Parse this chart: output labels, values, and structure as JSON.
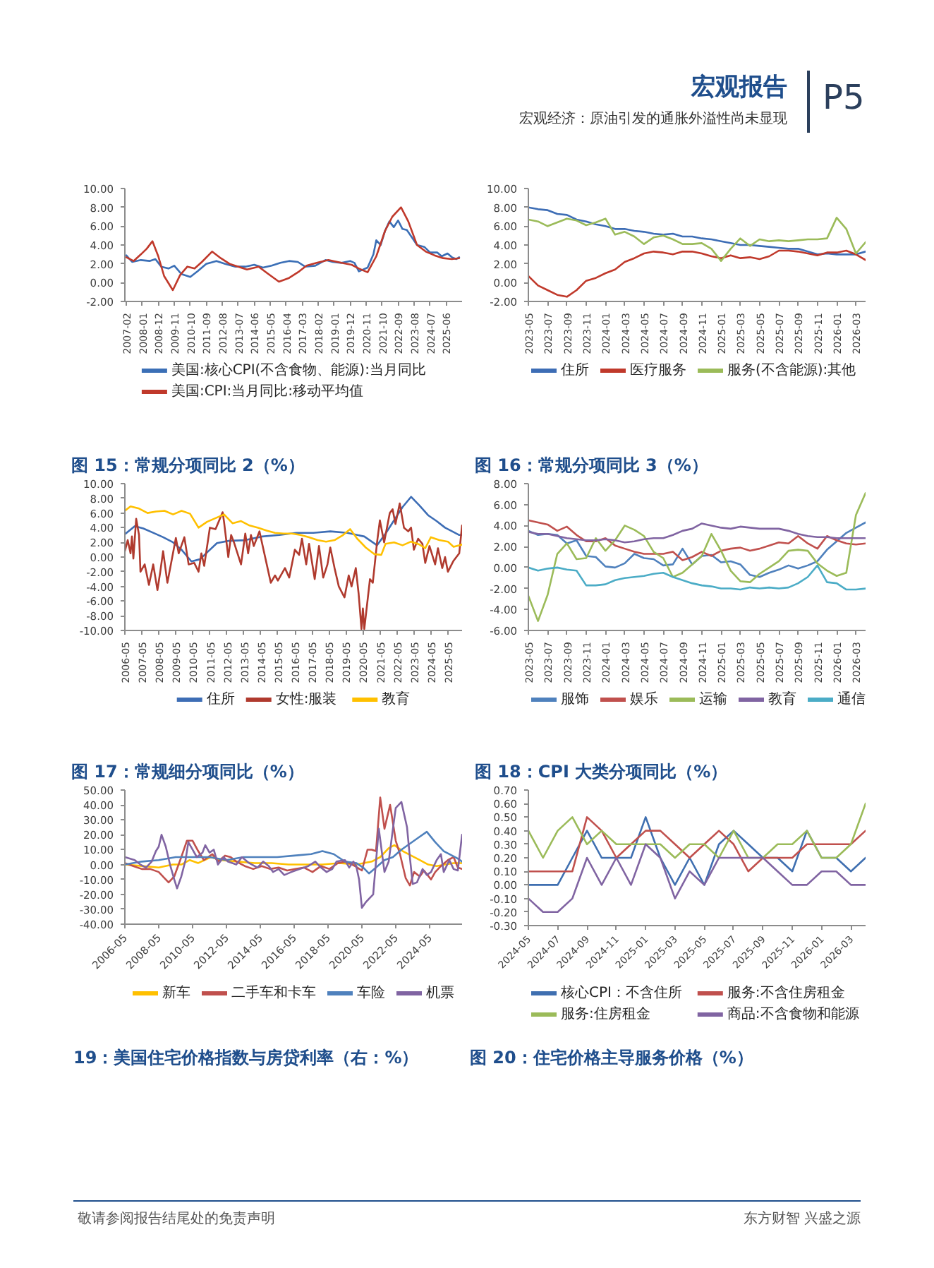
{
  "chart_data": [
    {
      "type": "other",
      "title": "宏观报告",
      "subtitle": "宏观经济：原油引发的通胀外溢性尚未显现",
      "annotations": [
        "P5"
      ]
    },
    {
      "type": "line",
      "xlim": [
        "2007-01",
        "2026-05"
      ],
      "ylim": [
        -2,
        10
      ],
      "xticks": [
        "2007-02",
        "2008-01",
        "2008-12",
        "2009-11",
        "2010-10",
        "2011-09",
        "2012-08",
        "2013-07",
        "2014-06",
        "2015-05",
        "2016-04",
        "2017-03",
        "2018-02",
        "2019-01",
        "2019-12",
        "2020-11",
        "2021-10",
        "2022-09",
        "2023-08",
        "2024-07",
        "2025-06"
      ],
      "yticks": [
        {
          "value": -2,
          "label": "-2.00"
        },
        {
          "value": 0,
          "label": "0.00"
        },
        {
          "value": 2,
          "label": "2.00"
        },
        {
          "value": 4,
          "label": "4.00"
        },
        {
          "value": 6,
          "label": "6.00"
        },
        {
          "value": 8,
          "label": "8.00"
        },
        {
          "value": 10,
          "label": "10.00"
        }
      ],
      "legend": "bottom",
      "series": [
        {
          "name": "美国:核心CPI(不含食物、能源):当月同比",
          "color": "#3b6fb6",
          "x": [
            "2007-02",
            "2007-06",
            "2007-12",
            "2008-06",
            "2008-10",
            "2009-02",
            "2009-07",
            "2009-11",
            "2010-04",
            "2010-10",
            "2011-03",
            "2011-09",
            "2012-04",
            "2012-10",
            "2013-05",
            "2013-12",
            "2014-06",
            "2014-12",
            "2015-06",
            "2015-12",
            "2016-06",
            "2016-12",
            "2017-05",
            "2017-12",
            "2018-07",
            "2018-12",
            "2019-06",
            "2019-12",
            "2020-03",
            "2020-06",
            "2020-12",
            "2021-04",
            "2021-06",
            "2021-09",
            "2021-12",
            "2022-03",
            "2022-06",
            "2022-09",
            "2022-12",
            "2023-03",
            "2023-07",
            "2023-10",
            "2024-03",
            "2024-07",
            "2024-12",
            "2025-03",
            "2025-07",
            "2025-10",
            "2026-01",
            "2026-03"
          ],
          "values": [
            2.9,
            2.2,
            2.4,
            2.3,
            2.5,
            1.7,
            1.5,
            1.8,
            0.9,
            0.6,
            1.2,
            2.0,
            2.3,
            2.0,
            1.7,
            1.7,
            1.9,
            1.6,
            1.8,
            2.1,
            2.3,
            2.2,
            1.7,
            1.8,
            2.4,
            2.2,
            2.1,
            2.3,
            2.1,
            1.2,
            1.6,
            3.0,
            4.5,
            4.0,
            5.5,
            6.5,
            5.9,
            6.6,
            5.7,
            5.6,
            4.7,
            4.0,
            3.8,
            3.2,
            3.2,
            2.8,
            3.1,
            2.7,
            2.5,
            2.7
          ]
        },
        {
          "name": "美国:CPI:当月同比:移动平均值",
          "color": "#c0392b",
          "x": [
            "2007-02",
            "2007-07",
            "2007-12",
            "2008-04",
            "2008-08",
            "2008-12",
            "2009-04",
            "2009-10",
            "2010-03",
            "2010-08",
            "2011-01",
            "2011-06",
            "2012-01",
            "2012-07",
            "2013-01",
            "2013-07",
            "2014-01",
            "2014-09",
            "2015-03",
            "2015-11",
            "2016-06",
            "2017-01",
            "2017-06",
            "2018-01",
            "2018-09",
            "2019-06",
            "2020-01",
            "2020-06",
            "2020-12",
            "2021-06",
            "2021-12",
            "2022-05",
            "2022-11",
            "2023-04",
            "2023-10",
            "2024-04",
            "2024-10",
            "2025-04",
            "2025-10",
            "2026-03"
          ],
          "values": [
            2.7,
            2.3,
            3.0,
            3.6,
            4.4,
            2.8,
            0.7,
            -0.8,
            0.8,
            1.7,
            1.5,
            2.2,
            3.3,
            2.6,
            2.0,
            1.7,
            1.4,
            1.7,
            1.0,
            0.1,
            0.5,
            1.2,
            1.8,
            2.1,
            2.4,
            2.1,
            1.9,
            1.5,
            1.1,
            2.8,
            5.5,
            7.0,
            8.0,
            6.5,
            4.0,
            3.3,
            2.9,
            2.6,
            2.5,
            2.6
          ]
        }
      ]
    },
    {
      "type": "line",
      "xlim": [
        "2023-05",
        "2026-04"
      ],
      "ylim": [
        -2,
        10
      ],
      "x": [
        "2023-05",
        "2023-06",
        "2023-07",
        "2023-08",
        "2023-09",
        "2023-10",
        "2023-11",
        "2023-12",
        "2024-01",
        "2024-02",
        "2024-03",
        "2024-04",
        "2024-05",
        "2024-06",
        "2024-07",
        "2024-08",
        "2024-09",
        "2024-10",
        "2024-11",
        "2024-12",
        "2025-01",
        "2025-02",
        "2025-03",
        "2025-04",
        "2025-05",
        "2025-06",
        "2025-07",
        "2025-08",
        "2025-09",
        "2025-10",
        "2025-11",
        "2025-12",
        "2026-01",
        "2026-02",
        "2026-03",
        "2026-04"
      ],
      "xticks": [
        "2023-05",
        "2023-07",
        "2023-09",
        "2023-11",
        "2024-01",
        "2024-03",
        "2024-05",
        "2024-07",
        "2024-09",
        "2024-11",
        "2025-01",
        "2025-03",
        "2025-05",
        "2025-07",
        "2025-09",
        "2025-11",
        "2026-01",
        "2026-03"
      ],
      "yticks": [
        {
          "value": -2,
          "label": "-2.00"
        },
        {
          "value": 0,
          "label": "0.00"
        },
        {
          "value": 2,
          "label": "2.00"
        },
        {
          "value": 4,
          "label": "4.00"
        },
        {
          "value": 6,
          "label": "6.00"
        },
        {
          "value": 8,
          "label": "8.00"
        },
        {
          "value": 10,
          "label": "10.00"
        }
      ],
      "legend": "bottom",
      "series": [
        {
          "name": "住所",
          "color": "#3d6db5",
          "values": [
            8.0,
            7.8,
            7.7,
            7.3,
            7.2,
            6.7,
            6.5,
            6.2,
            6.0,
            5.7,
            5.7,
            5.5,
            5.4,
            5.2,
            5.1,
            5.2,
            4.9,
            4.9,
            4.7,
            4.6,
            4.4,
            4.2,
            4.0,
            4.0,
            3.9,
            3.8,
            3.7,
            3.6,
            3.6,
            3.3,
            3.0,
            3.1,
            3.0,
            3.0,
            3.0,
            3.3
          ]
        },
        {
          "name": "医疗服务",
          "color": "#c0392b",
          "values": [
            0.7,
            -0.3,
            -0.8,
            -1.3,
            -1.5,
            -0.8,
            0.2,
            0.5,
            1.0,
            1.4,
            2.2,
            2.6,
            3.1,
            3.3,
            3.2,
            3.0,
            3.3,
            3.3,
            3.1,
            2.8,
            2.6,
            2.9,
            2.6,
            2.7,
            2.5,
            2.8,
            3.4,
            3.4,
            3.3,
            3.1,
            2.9,
            3.2,
            3.2,
            3.4,
            3.0,
            2.4
          ]
        },
        {
          "name": "服务(不含能源):其他",
          "color": "#9bbb59",
          "values": [
            6.7,
            6.5,
            6.0,
            6.4,
            6.8,
            6.6,
            6.1,
            6.4,
            6.8,
            5.1,
            5.4,
            4.9,
            4.1,
            4.8,
            5.0,
            4.6,
            4.1,
            4.1,
            4.2,
            3.6,
            2.3,
            3.6,
            4.7,
            3.9,
            4.6,
            4.4,
            4.5,
            4.4,
            4.5,
            4.6,
            4.6,
            4.7,
            6.9,
            5.7,
            3.1,
            4.3
          ]
        }
      ]
    },
    {
      "type": "line",
      "title": "图 15：常规分项同比 2（%）",
      "xlim": [
        "2006-05",
        "2026-03"
      ],
      "ylim": [
        -10,
        10
      ],
      "xticks": [
        "2006-05",
        "2007-05",
        "2008-05",
        "2009-05",
        "2010-05",
        "2011-05",
        "2012-05",
        "2013-05",
        "2014-05",
        "2015-05",
        "2016-05",
        "2017-05",
        "2018-05",
        "2019-05",
        "2020-05",
        "2021-05",
        "2022-05",
        "2023-05",
        "2024-05",
        "2025-05"
      ],
      "yticks": [
        {
          "value": -10,
          "label": "-10.00"
        },
        {
          "value": -8,
          "label": "-8.00"
        },
        {
          "value": -6,
          "label": "-6.00"
        },
        {
          "value": -4,
          "label": "-4.00"
        },
        {
          "value": -2,
          "label": "-2.00"
        },
        {
          "value": 0,
          "label": "0.00"
        },
        {
          "value": 2,
          "label": "2.00"
        },
        {
          "value": 4,
          "label": "4.00"
        },
        {
          "value": 6,
          "label": "6.00"
        },
        {
          "value": 8,
          "label": "8.00"
        },
        {
          "value": 10,
          "label": "10.00"
        }
      ],
      "legend": "bottom",
      "series": [
        {
          "name": "住所",
          "color": "#3d6db5",
          "x": [
            "2006-05",
            "2006-12",
            "2007-06",
            "2008-01",
            "2008-08",
            "2009-03",
            "2009-09",
            "2010-04",
            "2010-10",
            "2011-04",
            "2011-10",
            "2012-06",
            "2013-06",
            "2014-06",
            "2015-06",
            "2016-06",
            "2017-06",
            "2018-06",
            "2019-06",
            "2020-06",
            "2021-03",
            "2021-09",
            "2022-03",
            "2022-09",
            "2023-03",
            "2023-09",
            "2024-03",
            "2024-09",
            "2025-03",
            "2025-09",
            "2026-01",
            "2026-03"
          ],
          "values": [
            3.1,
            4.2,
            3.9,
            3.3,
            2.7,
            2.0,
            1.0,
            -0.6,
            -0.3,
            0.8,
            1.9,
            2.2,
            2.3,
            2.8,
            3.0,
            3.3,
            3.3,
            3.5,
            3.3,
            2.8,
            1.6,
            3.2,
            5.0,
            6.8,
            8.2,
            7.0,
            5.7,
            4.9,
            4.0,
            3.4,
            3.0,
            3.0
          ]
        },
        {
          "name": "女性:服装",
          "color": "#b03a2e",
          "x": [
            "2006-05",
            "2006-07",
            "2006-09",
            "2006-10",
            "2006-11",
            "2007-01",
            "2007-03",
            "2007-04",
            "2007-07",
            "2007-10",
            "2008-01",
            "2008-04",
            "2008-06",
            "2008-08",
            "2008-11",
            "2009-01",
            "2009-05",
            "2009-07",
            "2009-11",
            "2010-02",
            "2010-06",
            "2010-09",
            "2010-11",
            "2011-01",
            "2011-05",
            "2011-09",
            "2012-02",
            "2012-03",
            "2012-06",
            "2012-08",
            "2012-10",
            "2013-03",
            "2013-06",
            "2013-08",
            "2013-10",
            "2013-12",
            "2014-04",
            "2014-12",
            "2015-03",
            "2015-05",
            "2015-10",
            "2016-01",
            "2016-05",
            "2016-08",
            "2016-10",
            "2017-01",
            "2017-03",
            "2017-07",
            "2017-10",
            "2018-01",
            "2018-04",
            "2018-06",
            "2018-09",
            "2018-12",
            "2019-04",
            "2019-07",
            "2019-09",
            "2019-12",
            "2020-02",
            "2020-04",
            "2020-05",
            "2020-06",
            "2020-10",
            "2020-12",
            "2021-03",
            "2021-05",
            "2021-08",
            "2021-12",
            "2022-02",
            "2022-04",
            "2022-07",
            "2022-10",
            "2023-01",
            "2023-03",
            "2023-05",
            "2023-08",
            "2023-11",
            "2024-01",
            "2024-04",
            "2024-08",
            "2024-10",
            "2025-01",
            "2025-03",
            "2025-05",
            "2025-09",
            "2026-01",
            "2026-03"
          ],
          "values": [
            0.8,
            2.3,
            0.5,
            2.8,
            -0.2,
            5.2,
            3.0,
            -2.0,
            -1.0,
            -3.8,
            -1.0,
            -4.5,
            -2.0,
            0.8,
            -3.5,
            -1.5,
            2.6,
            0.5,
            2.7,
            -1.0,
            -0.8,
            -2.0,
            0.5,
            -1.2,
            4.0,
            3.8,
            6.1,
            4.8,
            0.0,
            3.0,
            2.0,
            -1.0,
            3.2,
            0.5,
            3.0,
            1.5,
            3.5,
            -3.5,
            -2.5,
            -3.2,
            -1.5,
            -2.8,
            1.0,
            0.3,
            2.5,
            -1.0,
            1.8,
            -3.0,
            1.5,
            -2.8,
            -1.0,
            1.3,
            -1.5,
            -4.0,
            -5.5,
            -2.5,
            -4.0,
            -1.5,
            -5.0,
            -9.8,
            -7.0,
            -9.8,
            -3.0,
            -3.5,
            2.0,
            5.0,
            2.0,
            6.0,
            6.5,
            4.5,
            7.3,
            4.0,
            3.5,
            4.0,
            1.0,
            2.5,
            1.8,
            -0.8,
            1.5,
            -1.0,
            1.2,
            -1.5,
            0.0,
            -2.0,
            -0.5,
            0.5,
            4.3
          ]
        },
        {
          "name": "教育",
          "color": "#ffc000",
          "x": [
            "2006-05",
            "2006-09",
            "2007-03",
            "2007-09",
            "2008-03",
            "2008-09",
            "2009-03",
            "2009-09",
            "2010-03",
            "2010-09",
            "2011-03",
            "2011-09",
            "2012-03",
            "2012-09",
            "2013-03",
            "2013-09",
            "2014-03",
            "2014-09",
            "2015-03",
            "2015-09",
            "2016-03",
            "2016-09",
            "2017-03",
            "2017-09",
            "2018-03",
            "2018-09",
            "2019-03",
            "2019-08",
            "2020-01",
            "2020-07",
            "2021-01",
            "2021-06",
            "2021-09",
            "2022-03",
            "2022-09",
            "2023-03",
            "2023-09",
            "2024-01",
            "2024-05",
            "2024-11",
            "2025-05",
            "2025-09",
            "2026-03"
          ],
          "values": [
            6.3,
            6.9,
            6.6,
            6.0,
            6.2,
            6.3,
            5.8,
            6.3,
            5.9,
            4.0,
            4.8,
            5.3,
            5.8,
            4.6,
            4.9,
            4.3,
            4.0,
            3.6,
            3.3,
            3.2,
            3.2,
            3.0,
            2.7,
            2.3,
            2.1,
            2.3,
            3.0,
            3.8,
            2.5,
            1.3,
            0.4,
            0.3,
            1.8,
            2.0,
            1.6,
            2.1,
            1.7,
            1.2,
            2.7,
            2.3,
            2.1,
            1.4,
            1.7
          ]
        }
      ]
    },
    {
      "type": "line",
      "title": "图 16：常规分项同比 3（%）",
      "xlim": [
        "2023-05",
        "2026-04"
      ],
      "ylim": [
        -6,
        8
      ],
      "x": [
        "2023-05",
        "2023-06",
        "2023-07",
        "2023-08",
        "2023-09",
        "2023-10",
        "2023-11",
        "2023-12",
        "2024-01",
        "2024-02",
        "2024-03",
        "2024-04",
        "2024-05",
        "2024-06",
        "2024-07",
        "2024-08",
        "2024-09",
        "2024-10",
        "2024-11",
        "2024-12",
        "2025-01",
        "2025-02",
        "2025-03",
        "2025-04",
        "2025-05",
        "2025-06",
        "2025-07",
        "2025-08",
        "2025-09",
        "2025-10",
        "2025-11",
        "2025-12",
        "2026-01",
        "2026-02",
        "2026-03",
        "2026-04"
      ],
      "xticks": [
        "2023-05",
        "2023-07",
        "2023-09",
        "2023-11",
        "2024-01",
        "2024-03",
        "2024-05",
        "2024-07",
        "2024-09",
        "2024-11",
        "2025-01",
        "2025-03",
        "2025-05",
        "2025-07",
        "2025-09",
        "2025-11",
        "2026-01",
        "2026-03"
      ],
      "yticks": [
        {
          "value": -6,
          "label": "-6.00"
        },
        {
          "value": -4,
          "label": "-4.00"
        },
        {
          "value": -2,
          "label": "-2.00"
        },
        {
          "value": 0,
          "label": "0.00"
        },
        {
          "value": 2,
          "label": "2.00"
        },
        {
          "value": 4,
          "label": "4.00"
        },
        {
          "value": 6,
          "label": "6.00"
        },
        {
          "value": 8,
          "label": "8.00"
        }
      ],
      "legend": "bottom",
      "series": [
        {
          "name": "服饰",
          "color": "#4f81bd",
          "values": [
            3.5,
            3.1,
            3.2,
            3.1,
            2.3,
            2.6,
            1.1,
            1.0,
            0.1,
            0.0,
            0.4,
            1.3,
            0.9,
            0.8,
            0.2,
            0.3,
            1.8,
            0.3,
            1.1,
            1.2,
            0.5,
            0.6,
            0.3,
            -0.7,
            -0.9,
            -0.5,
            -0.2,
            0.2,
            -0.1,
            0.2,
            0.6,
            1.7,
            2.5,
            3.3,
            3.8,
            4.3
          ]
        },
        {
          "name": "娱乐",
          "color": "#c0504d",
          "values": [
            4.5,
            4.3,
            4.1,
            3.5,
            3.9,
            3.1,
            2.5,
            2.5,
            2.8,
            2.1,
            1.8,
            1.5,
            1.3,
            1.3,
            1.3,
            1.5,
            0.7,
            1.0,
            1.5,
            1.1,
            1.6,
            1.8,
            1.9,
            1.6,
            1.8,
            2.1,
            2.4,
            2.3,
            3.0,
            2.3,
            1.8,
            3.0,
            2.6,
            2.3,
            2.2,
            2.3
          ]
        },
        {
          "name": "运输",
          "color": "#9bbb59",
          "values": [
            -2.7,
            -5.1,
            -2.6,
            1.3,
            2.3,
            0.8,
            0.9,
            2.8,
            1.6,
            2.6,
            4.0,
            3.6,
            3.0,
            1.5,
            0.9,
            -0.9,
            -0.5,
            0.3,
            1.1,
            3.2,
            1.6,
            -0.3,
            -1.3,
            -1.4,
            -0.6,
            0.0,
            0.6,
            1.6,
            1.7,
            1.6,
            0.4,
            -0.3,
            -0.8,
            -0.5,
            5.0,
            7.1
          ]
        },
        {
          "name": "教育",
          "color": "#8064a2",
          "values": [
            3.4,
            3.2,
            3.2,
            3.0,
            2.8,
            2.7,
            2.6,
            2.6,
            2.7,
            2.6,
            2.4,
            2.5,
            2.7,
            2.8,
            2.8,
            3.1,
            3.5,
            3.7,
            4.2,
            4.0,
            3.8,
            3.7,
            3.9,
            3.8,
            3.7,
            3.7,
            3.7,
            3.5,
            3.2,
            3.0,
            2.9,
            2.9,
            2.8,
            2.8,
            2.8,
            2.8
          ]
        },
        {
          "name": "通信",
          "color": "#4bacc6",
          "values": [
            0.0,
            -0.3,
            -0.1,
            0.0,
            -0.2,
            -0.3,
            -1.7,
            -1.7,
            -1.6,
            -1.2,
            -1.0,
            -0.9,
            -0.8,
            -0.6,
            -0.5,
            -0.9,
            -1.2,
            -1.5,
            -1.7,
            -1.8,
            -2.0,
            -2.0,
            -2.1,
            -1.9,
            -2.0,
            -1.9,
            -2.0,
            -1.9,
            -1.5,
            -0.9,
            0.2,
            -1.4,
            -1.5,
            -2.1,
            -2.1,
            -2.0
          ]
        }
      ]
    },
    {
      "type": "line",
      "title": "图 17：常规细分项同比（%）",
      "xlim": [
        "2006-05",
        "2026-04"
      ],
      "ylim": [
        -40,
        50
      ],
      "xticks": [
        "2006-05",
        "2008-05",
        "2010-05",
        "2012-05",
        "2014-05",
        "2016-05",
        "2018-05",
        "2020-05",
        "2022-05",
        "2024-05"
      ],
      "yticks": [
        {
          "value": -40,
          "label": "-40.00"
        },
        {
          "value": -30,
          "label": "-30.00"
        },
        {
          "value": -20,
          "label": "-20.00"
        },
        {
          "value": -10,
          "label": "-10.00"
        },
        {
          "value": 0,
          "label": "0.00"
        },
        {
          "value": 10,
          "label": "10.00"
        },
        {
          "value": 20,
          "label": "20.00"
        },
        {
          "value": 30,
          "label": "30.00"
        },
        {
          "value": 40,
          "label": "40.00"
        },
        {
          "value": 50,
          "label": "50.00"
        }
      ],
      "legend": "bottom",
      "series": [
        {
          "name": "新车",
          "color": "#ffc000",
          "x": [
            "2006-05",
            "2007-05",
            "2008-05",
            "2009-03",
            "2009-09",
            "2010-03",
            "2010-09",
            "2011-06",
            "2012-01",
            "2013-01",
            "2014-01",
            "2015-01",
            "2016-01",
            "2017-01",
            "2018-01",
            "2019-01",
            "2020-01",
            "2020-12",
            "2021-06",
            "2021-12",
            "2022-04",
            "2022-10",
            "2023-04",
            "2023-10",
            "2024-04",
            "2024-10",
            "2025-04",
            "2025-10",
            "2026-04"
          ],
          "values": [
            0,
            -1,
            -2,
            0,
            0,
            3,
            1,
            5,
            3,
            2,
            1,
            1,
            0,
            0,
            0,
            1,
            0,
            2,
            5,
            11,
            13,
            9,
            6,
            3,
            0,
            -1,
            0,
            1,
            1
          ]
        },
        {
          "name": "二手车和卡车",
          "color": "#c0504d",
          "x": [
            "2006-05",
            "2006-11",
            "2007-05",
            "2007-11",
            "2008-05",
            "2008-09",
            "2008-12",
            "2009-04",
            "2009-09",
            "2010-01",
            "2010-05",
            "2010-09",
            "2011-01",
            "2011-07",
            "2011-11",
            "2012-04",
            "2012-08",
            "2012-12",
            "2013-06",
            "2013-12",
            "2014-06",
            "2014-12",
            "2015-06",
            "2015-12",
            "2016-06",
            "2016-12",
            "2017-06",
            "2017-12",
            "2018-06",
            "2018-12",
            "2019-06",
            "2019-12",
            "2020-05",
            "2020-09",
            "2020-12",
            "2021-03",
            "2021-06",
            "2021-09",
            "2022-01",
            "2022-05",
            "2022-08",
            "2022-12",
            "2023-03",
            "2023-06",
            "2023-10",
            "2024-01",
            "2024-06",
            "2024-09",
            "2025-01",
            "2025-06",
            "2025-10",
            "2026-01",
            "2026-04"
          ],
          "values": [
            1,
            -1,
            -3,
            -3,
            -5,
            -9,
            -12,
            -8,
            5,
            16,
            16,
            9,
            3,
            7,
            2,
            6,
            5,
            2,
            -1,
            -3,
            -1,
            -3,
            -2,
            -4,
            -3,
            -2,
            -5,
            -1,
            -3,
            1,
            2,
            -1,
            -4,
            10,
            10,
            9,
            45,
            24,
            40,
            16,
            7,
            -9,
            -14,
            -5,
            -8,
            -4,
            -10,
            -5,
            -1,
            3,
            5,
            -2,
            -3
          ]
        },
        {
          "name": "车险",
          "color": "#4f81bd",
          "x": [
            "2006-05",
            "2007-05",
            "2008-05",
            "2009-05",
            "2010-05",
            "2011-05",
            "2012-05",
            "2013-05",
            "2014-05",
            "2015-05",
            "2016-05",
            "2017-05",
            "2018-01",
            "2018-09",
            "2019-05",
            "2020-01",
            "2020-06",
            "2020-10",
            "2021-03",
            "2021-09",
            "2022-03",
            "2022-09",
            "2023-03",
            "2023-09",
            "2024-03",
            "2024-09",
            "2025-03",
            "2025-09",
            "2026-01",
            "2026-04"
          ],
          "values": [
            0,
            2,
            3,
            5,
            5,
            5,
            3,
            5,
            5,
            5,
            6,
            7,
            9,
            7,
            2,
            1,
            -2,
            -6,
            -2,
            3,
            5,
            10,
            14,
            18,
            22,
            15,
            9,
            6,
            4,
            2
          ]
        },
        {
          "name": "机票",
          "color": "#8064a2",
          "x": [
            "2006-05",
            "2006-12",
            "2007-04",
            "2007-08",
            "2007-12",
            "2008-03",
            "2008-05",
            "2008-07",
            "2008-10",
            "2009-01",
            "2009-04",
            "2009-06",
            "2009-09",
            "2009-12",
            "2010-02",
            "2010-05",
            "2010-08",
            "2010-12",
            "2011-02",
            "2011-05",
            "2011-08",
            "2011-11",
            "2012-03",
            "2012-06",
            "2012-12",
            "2013-04",
            "2013-09",
            "2014-03",
            "2014-07",
            "2014-11",
            "2015-02",
            "2015-06",
            "2015-10",
            "2016-03",
            "2016-09",
            "2017-03",
            "2017-08",
            "2017-12",
            "2018-04",
            "2018-08",
            "2018-11",
            "2019-05",
            "2019-08",
            "2019-11",
            "2020-01",
            "2020-03",
            "2020-05",
            "2020-08",
            "2021-01",
            "2021-05",
            "2021-09",
            "2021-12",
            "2022-03",
            "2022-05",
            "2022-09",
            "2023-01",
            "2023-03",
            "2023-05",
            "2023-08",
            "2023-12",
            "2024-03",
            "2024-06",
            "2024-10",
            "2025-01",
            "2025-03",
            "2025-07",
            "2025-10",
            "2026-01",
            "2026-04"
          ],
          "values": [
            5,
            3,
            0,
            -2,
            2,
            9,
            12,
            20,
            12,
            0,
            -10,
            -16,
            -8,
            3,
            15,
            10,
            5,
            8,
            13,
            8,
            10,
            0,
            5,
            2,
            0,
            5,
            1,
            -2,
            2,
            -1,
            -5,
            -3,
            -7,
            -5,
            -3,
            -1,
            2,
            -2,
            -5,
            -3,
            2,
            3,
            -2,
            2,
            -1,
            -10,
            -29,
            -25,
            -20,
            24,
            -5,
            2,
            24,
            38,
            42,
            25,
            5,
            -13,
            -12,
            -3,
            -7,
            -5,
            3,
            7,
            -5,
            3,
            -3,
            -4,
            20
          ]
        }
      ]
    },
    {
      "type": "line",
      "title": "图 18：CPI 大类分项同比（%）",
      "xlim": [
        "2024-05",
        "2026-04"
      ],
      "ylim": [
        -0.3,
        0.7
      ],
      "x": [
        "2024-05",
        "2024-06",
        "2024-07",
        "2024-08",
        "2024-09",
        "2024-10",
        "2024-11",
        "2024-12",
        "2025-01",
        "2025-02",
        "2025-03",
        "2025-04",
        "2025-05",
        "2025-06",
        "2025-07",
        "2025-08",
        "2025-09",
        "2025-10",
        "2025-11",
        "2025-12",
        "2026-01",
        "2026-02",
        "2026-03",
        "2026-04"
      ],
      "xticks": [
        "2024-05",
        "2024-07",
        "2024-09",
        "2024-11",
        "2025-01",
        "2025-03",
        "2025-05",
        "2025-07",
        "2025-09",
        "2025-11",
        "2026-01",
        "2026-03"
      ],
      "yticks": [
        {
          "value": -0.3,
          "label": "-0.30"
        },
        {
          "value": -0.2,
          "label": "-0.20"
        },
        {
          "value": -0.1,
          "label": "-0.10"
        },
        {
          "value": 0,
          "label": "0.00"
        },
        {
          "value": 0.1,
          "label": "0.10"
        },
        {
          "value": 0.2,
          "label": "0.20"
        },
        {
          "value": 0.3,
          "label": "0.30"
        },
        {
          "value": 0.4,
          "label": "0.40"
        },
        {
          "value": 0.5,
          "label": "0.50"
        },
        {
          "value": 0.6,
          "label": "0.60"
        },
        {
          "value": 0.7,
          "label": "0.70"
        }
      ],
      "legend": "bottom",
      "series": [
        {
          "name": "核心CPI：不含住所",
          "color": "#3f6fb0",
          "values": [
            0.0,
            0.0,
            0.0,
            0.2,
            0.4,
            0.2,
            0.2,
            0.2,
            0.5,
            0.2,
            0.0,
            0.2,
            0.0,
            0.3,
            0.4,
            0.3,
            0.2,
            0.2,
            0.1,
            0.4,
            0.2,
            0.2,
            0.1,
            0.2
          ]
        },
        {
          "name": "服务:不含住房租金",
          "color": "#c0504d",
          "values": [
            0.1,
            0.1,
            0.1,
            0.1,
            0.5,
            0.4,
            0.2,
            0.3,
            0.4,
            0.4,
            0.3,
            0.2,
            0.3,
            0.4,
            0.3,
            0.1,
            0.2,
            0.2,
            0.2,
            0.3,
            0.3,
            0.3,
            0.3,
            0.4
          ]
        },
        {
          "name": "服务:住房租金",
          "color": "#9bbb59",
          "values": [
            0.4,
            0.2,
            0.4,
            0.5,
            0.3,
            0.4,
            0.3,
            0.3,
            0.3,
            0.3,
            0.2,
            0.3,
            0.3,
            0.2,
            0.4,
            0.2,
            0.2,
            0.3,
            0.3,
            0.4,
            0.2,
            0.2,
            0.3,
            0.6
          ]
        },
        {
          "name": "商品:不含食物和能源",
          "color": "#8064a2",
          "values": [
            -0.1,
            -0.2,
            -0.2,
            -0.1,
            0.2,
            0.0,
            0.2,
            0.0,
            0.3,
            0.2,
            -0.1,
            0.1,
            0.0,
            0.2,
            0.2,
            0.2,
            0.2,
            0.1,
            0.0,
            0.0,
            0.1,
            0.1,
            0.0,
            0.0
          ]
        }
      ]
    },
    {
      "type": "other",
      "annotations": [
        "19：美国住宅价格指数与房贷利率（右：%）",
        "图 20：住宅价格主导服务价格（%）",
        "敬请参阅报告结尾处的免责声明",
        "东方财智 兴盛之源"
      ]
    }
  ]
}
